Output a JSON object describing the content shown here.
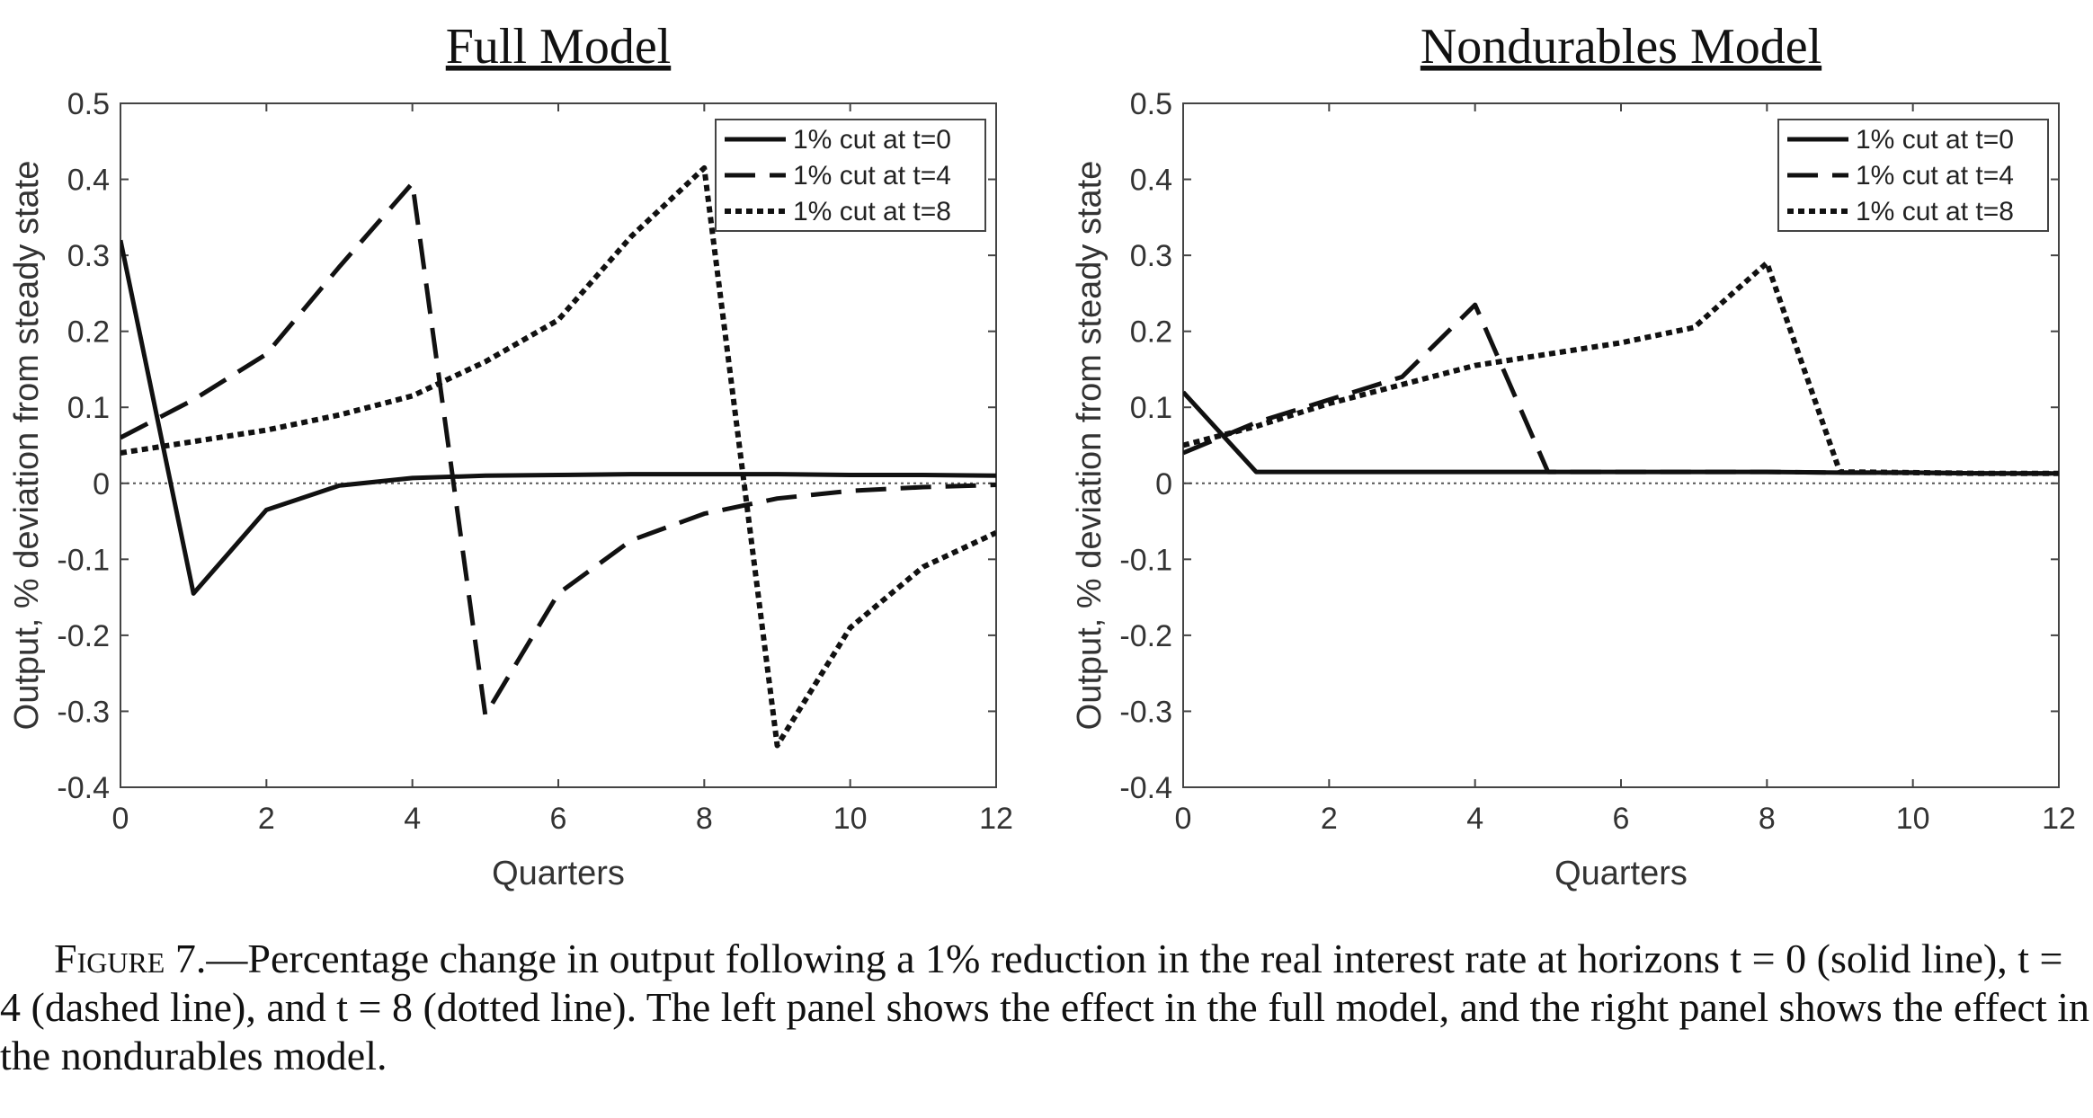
{
  "chart_data": [
    {
      "type": "line",
      "title": "Full Model",
      "xlabel": "Quarters",
      "ylabel": "Output, % deviation from steady state",
      "xlim": [
        0,
        12
      ],
      "ylim": [
        -0.4,
        0.5
      ],
      "xticks": [
        0,
        2,
        4,
        6,
        8,
        10,
        12
      ],
      "yticks": [
        -0.4,
        -0.3,
        -0.2,
        -0.1,
        0,
        0.1,
        0.2,
        0.3,
        0.4,
        0.5
      ],
      "ytick_labels": [
        "-0.4",
        "-0.3",
        "-0.2",
        "-0.1",
        "0",
        "0.1",
        "0.2",
        "0.3",
        "0.4",
        "0.5"
      ],
      "grid": false,
      "legend_position": "top-right",
      "reference_line": 0,
      "x": [
        0,
        1,
        2,
        3,
        4,
        5,
        6,
        7,
        8,
        9,
        10,
        11,
        12
      ],
      "series": [
        {
          "name": "1% cut at t=0",
          "style": "solid",
          "values": [
            0.32,
            -0.145,
            -0.035,
            -0.003,
            0.007,
            0.01,
            0.011,
            0.012,
            0.012,
            0.012,
            0.011,
            0.011,
            0.01
          ]
        },
        {
          "name": "1% cut at t=4",
          "style": "dashed",
          "values": [
            0.06,
            0.11,
            0.17,
            0.285,
            0.395,
            -0.305,
            -0.145,
            -0.075,
            -0.04,
            -0.02,
            -0.01,
            -0.005,
            -0.002
          ]
        },
        {
          "name": "1% cut at t=8",
          "style": "dotted",
          "values": [
            0.04,
            0.055,
            0.07,
            0.09,
            0.115,
            0.16,
            0.215,
            0.325,
            0.415,
            -0.345,
            -0.19,
            -0.11,
            -0.065
          ]
        }
      ]
    },
    {
      "type": "line",
      "title": "Nondurables Model",
      "xlabel": "Quarters",
      "ylabel": "Output, % deviation from steady state",
      "xlim": [
        0,
        12
      ],
      "ylim": [
        -0.4,
        0.5
      ],
      "xticks": [
        0,
        2,
        4,
        6,
        8,
        10,
        12
      ],
      "yticks": [
        -0.4,
        -0.3,
        -0.2,
        -0.1,
        0,
        0.1,
        0.2,
        0.3,
        0.4,
        0.5
      ],
      "ytick_labels": [
        "-0.4",
        "-0.3",
        "-0.2",
        "-0.1",
        "0",
        "0.1",
        "0.2",
        "0.3",
        "0.4",
        "0.5"
      ],
      "grid": false,
      "legend_position": "top-right",
      "reference_line": 0,
      "x": [
        0,
        1,
        2,
        3,
        4,
        5,
        6,
        7,
        8,
        9,
        10,
        11,
        12
      ],
      "series": [
        {
          "name": "1% cut at t=0",
          "style": "solid",
          "values": [
            0.12,
            0.015,
            0.015,
            0.015,
            0.015,
            0.015,
            0.015,
            0.015,
            0.015,
            0.014,
            0.014,
            0.013,
            0.013
          ]
        },
        {
          "name": "1% cut at t=4",
          "style": "dashed",
          "values": [
            0.04,
            0.08,
            0.11,
            0.14,
            0.235,
            0.015,
            0.015,
            0.015,
            0.015,
            0.014,
            0.014,
            0.013,
            0.013
          ]
        },
        {
          "name": "1% cut at t=8",
          "style": "dotted",
          "values": [
            0.05,
            0.075,
            0.105,
            0.13,
            0.155,
            0.17,
            0.185,
            0.205,
            0.29,
            0.015,
            0.014,
            0.013,
            0.013
          ]
        }
      ]
    }
  ],
  "caption": {
    "figure_label": "Figure 7.",
    "text": "—Percentage change in output following a 1% reduction in the real interest rate at horizons t = 0 (solid line), t = 4 (dashed line), and t = 8 (dotted line). The left panel shows the effect in the full model, and the right panel shows the effect in the nondurables model."
  }
}
